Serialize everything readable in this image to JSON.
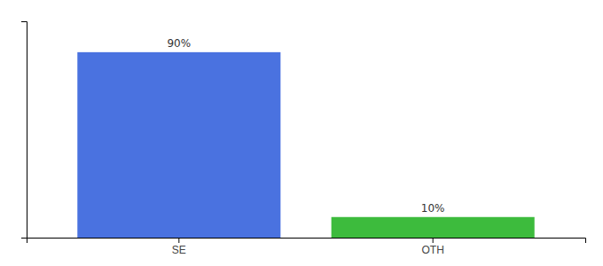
{
  "chart_data": {
    "type": "bar",
    "categories": [
      "SE",
      "OTH"
    ],
    "values": [
      90,
      10
    ],
    "value_labels": [
      "90%",
      "10%"
    ],
    "colors": [
      "#4a72e0",
      "#3dbb3d"
    ],
    "ylim": [
      0,
      105
    ],
    "data_labels": true,
    "tick_labels": "x",
    "grid": false
  }
}
